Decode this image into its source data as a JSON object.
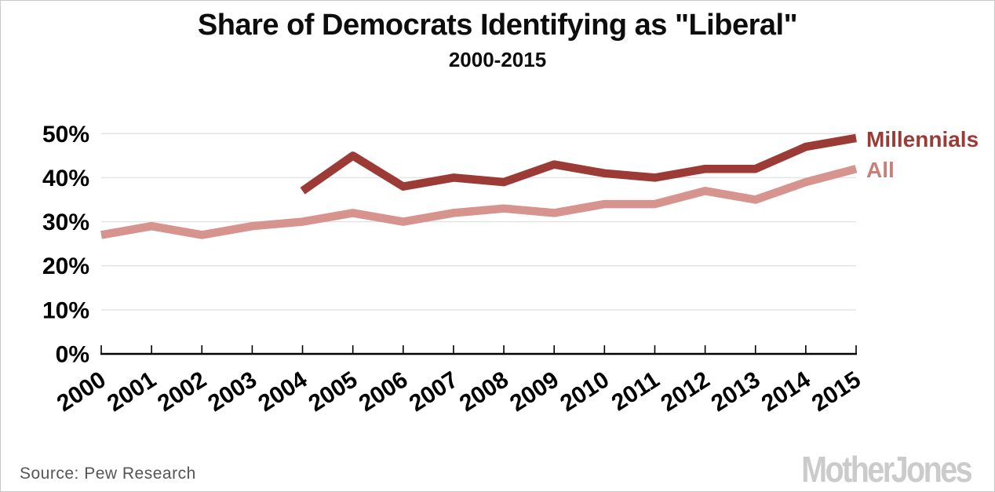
{
  "footer": {
    "source": "Source: Pew Research",
    "brand": "Mother Jones"
  },
  "chart_data": {
    "type": "line",
    "title": "Share of Democrats Identifying as \"Liberal\"",
    "subtitle": "2000-2015",
    "xlabel": "",
    "ylabel": "",
    "x": [
      2000,
      2001,
      2002,
      2003,
      2004,
      2005,
      2006,
      2007,
      2008,
      2009,
      2010,
      2011,
      2012,
      2013,
      2014,
      2015
    ],
    "series": [
      {
        "name": "Millennials",
        "color": "#9c3b36",
        "values": [
          null,
          null,
          null,
          null,
          37,
          45,
          38,
          40,
          39,
          43,
          41,
          40,
          42,
          42,
          47,
          49
        ]
      },
      {
        "name": "All",
        "color": "#d7938e",
        "label_color": "#ca7e78",
        "values": [
          27,
          29,
          27,
          29,
          30,
          32,
          30,
          32,
          33,
          32,
          34,
          34,
          37,
          35,
          39,
          42
        ]
      }
    ],
    "ylim": [
      0,
      50
    ],
    "y_ticks": [
      0,
      10,
      20,
      30,
      40,
      50
    ],
    "y_tick_labels": [
      "0%",
      "10%",
      "20%",
      "30%",
      "40%",
      "50%"
    ],
    "grid": true,
    "legend_position": "right-of-line-ends"
  }
}
